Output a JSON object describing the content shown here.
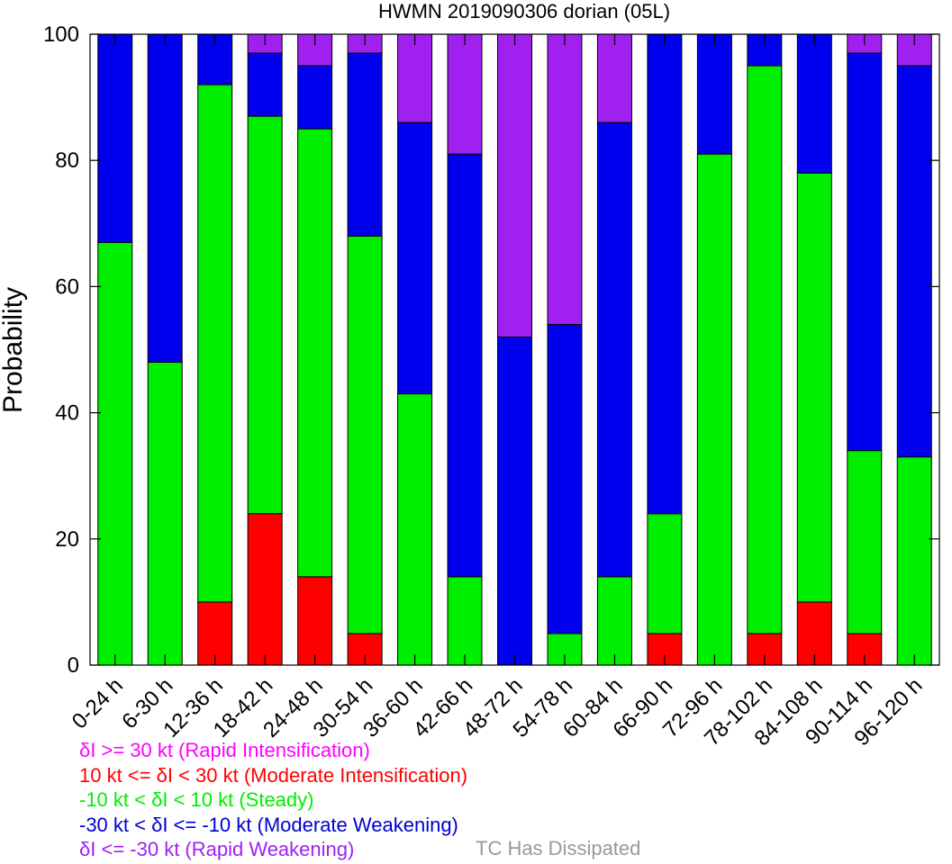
{
  "chart_data": {
    "type": "bar",
    "stacked": true,
    "title": "HWMN 2019090306 dorian (05L)",
    "ylabel": "Probability",
    "xlabel": "",
    "ylim": [
      0,
      100
    ],
    "yticks": [
      "0",
      "20",
      "40",
      "60",
      "80",
      "100"
    ],
    "categories": [
      "0-24 h",
      "6-30 h",
      "12-36 h",
      "18-42 h",
      "24-48 h",
      "30-54 h",
      "36-60 h",
      "42-66 h",
      "48-72 h",
      "54-78 h",
      "60-84 h",
      "66-90 h",
      "72-96 h",
      "78-102 h",
      "84-108 h",
      "90-114 h",
      "96-120 h"
    ],
    "series": [
      {
        "key": "moderate_intensification",
        "color": "#ff0000",
        "values": [
          0,
          0,
          10,
          24,
          14,
          5,
          0,
          0,
          0,
          0,
          0,
          5,
          0,
          5,
          10,
          5,
          0
        ]
      },
      {
        "key": "steady",
        "color": "#00ee00",
        "values": [
          67,
          48,
          82,
          63,
          71,
          63,
          43,
          14,
          0,
          5,
          14,
          19,
          81,
          90,
          68,
          29,
          33
        ]
      },
      {
        "key": "moderate_weakening",
        "color": "#0000ee",
        "values": [
          33,
          52,
          8,
          10,
          10,
          29,
          43,
          67,
          52,
          49,
          72,
          76,
          19,
          5,
          22,
          63,
          62
        ]
      },
      {
        "key": "rapid_weakening",
        "color": "#a020f0",
        "values": [
          0,
          0,
          0,
          3,
          5,
          3,
          14,
          19,
          48,
          46,
          14,
          0,
          0,
          0,
          0,
          3,
          5
        ]
      }
    ],
    "grid": false,
    "legend": "bottom-left"
  },
  "legend": {
    "items": [
      {
        "key": "rapid_intensification",
        "label": "δI >= 30 kt (Rapid Intensification)",
        "color": "#ff00ff"
      },
      {
        "key": "moderate_intensification",
        "label": "10 kt <= δI < 30 kt (Moderate Intensification)",
        "color": "#ff0000"
      },
      {
        "key": "steady",
        "label": "-10 kt < δI < 10 kt (Steady)",
        "color": "#00ee00"
      },
      {
        "key": "moderate_weakening",
        "label": "-30 kt < δI <= -10 kt (Moderate Weakening)",
        "color": "#0000cc"
      },
      {
        "key": "rapid_weakening",
        "label": "δI <= -30 kt (Rapid Weakening)",
        "color": "#a020f0"
      }
    ],
    "dissipated_label": "TC Has Dissipated",
    "dissipated_color": "#999999"
  }
}
